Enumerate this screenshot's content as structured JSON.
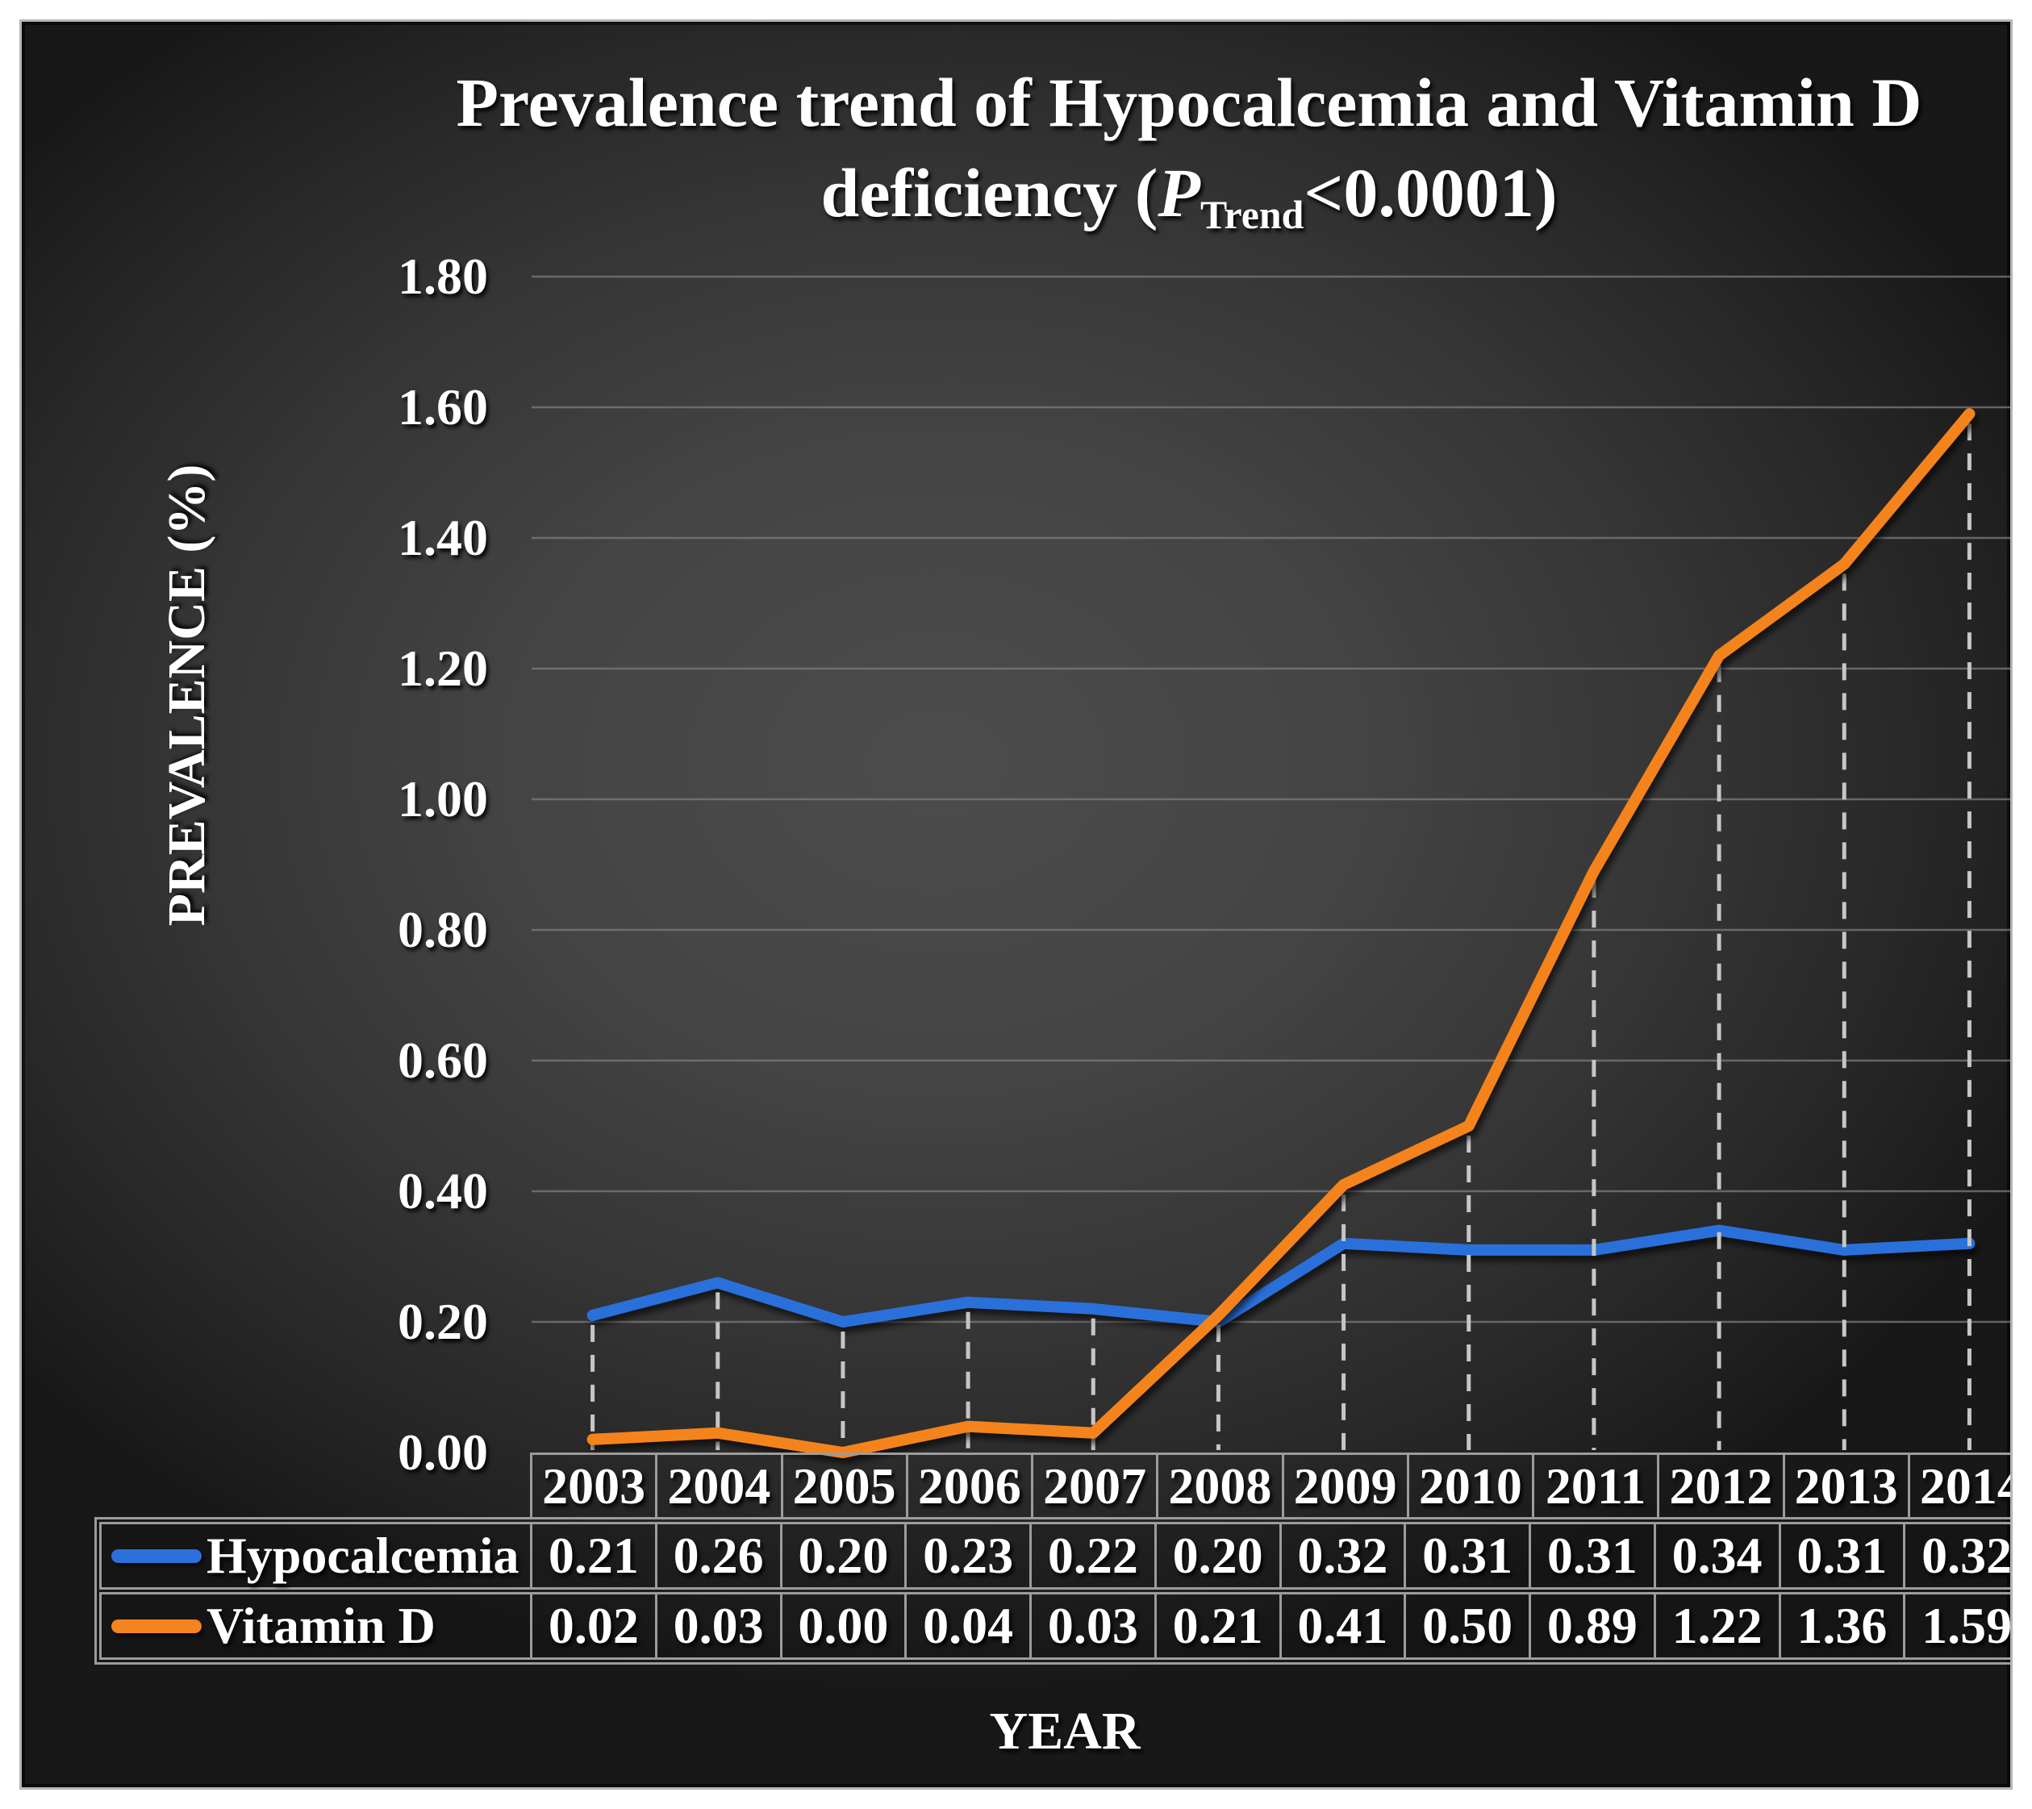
{
  "title": {
    "line1": "Prevalence trend of Hypocalcemia and Vitamin D",
    "line2_prefix": "deficiency (",
    "p_symbol": "P",
    "p_subscript": "Trend",
    "line2_suffix": "<0.0001)"
  },
  "y_axis": {
    "label": "PREVALENCE (%)",
    "ticks": [
      "1.80",
      "1.60",
      "1.40",
      "1.20",
      "1.00",
      "0.80",
      "0.60",
      "0.40",
      "0.20",
      "0.00"
    ]
  },
  "x_axis": {
    "label": "YEAR"
  },
  "chart_data": {
    "type": "line",
    "categories": [
      "2003",
      "2004",
      "2005",
      "2006",
      "2007",
      "2008",
      "2009",
      "2010",
      "2011",
      "2012",
      "2013",
      "2014"
    ],
    "series": [
      {
        "name": "Hypocalcemia",
        "color": "#2b70da",
        "values": [
          0.21,
          0.26,
          0.2,
          0.23,
          0.22,
          0.2,
          0.32,
          0.31,
          0.31,
          0.34,
          0.31,
          0.32
        ],
        "display": [
          "0.21",
          "0.26",
          "0.20",
          "0.23",
          "0.22",
          "0.20",
          "0.32",
          "0.31",
          "0.31",
          "0.34",
          "0.31",
          "0.32"
        ]
      },
      {
        "name": "Vitamin D",
        "color": "#f5831f",
        "values": [
          0.02,
          0.03,
          0.0,
          0.04,
          0.03,
          0.21,
          0.41,
          0.5,
          0.89,
          1.22,
          1.36,
          1.59
        ],
        "display": [
          "0.02",
          "0.03",
          "0.00",
          "0.04",
          "0.03",
          "0.21",
          "0.41",
          "0.50",
          "0.89",
          "1.22",
          "1.36",
          "1.59"
        ]
      }
    ],
    "title": "Prevalence trend of Hypocalcemia and Vitamin D deficiency (P Trend<0.0001)",
    "xlabel": "YEAR",
    "ylabel": "PREVALENCE (%)",
    "ylim": [
      0,
      1.8
    ],
    "y_tick_step": 0.2,
    "grid": true,
    "drop_lines": "dashed-vertical-from-max-point-to-axis",
    "legend_position": "data-table-left"
  },
  "style": {
    "text_color": "#ffffff",
    "gridline_color": "#7c7c7c",
    "dash_color": "#c6c6c6",
    "table_border_color": "#9c9c9c",
    "panel_border_color": "#b5b5b5",
    "hypocalcemia_color": "#2b70da",
    "vitamin_d_color": "#f5831f"
  }
}
